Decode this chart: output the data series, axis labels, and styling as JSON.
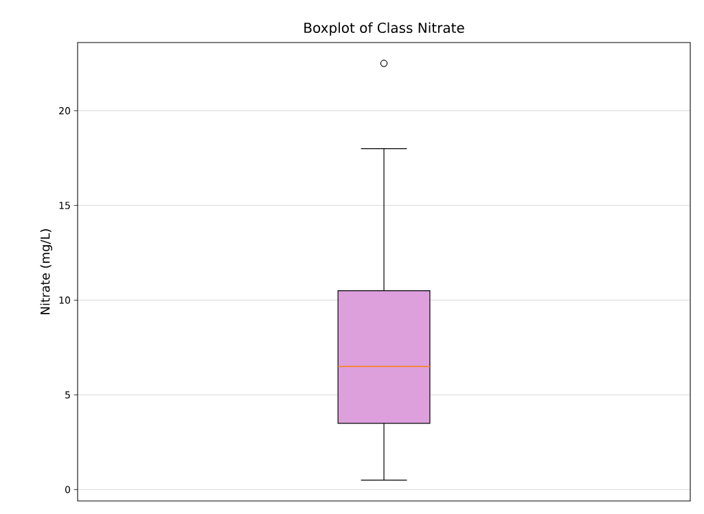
{
  "chart_data": {
    "type": "box",
    "title": "Boxplot of Class Nitrate",
    "ylabel": "Nitrate (mg/L)",
    "categories": [
      null
    ],
    "series": [
      {
        "color": "#dda0dd",
        "boxes": [
          {
            "low": 0.5,
            "q1": 3.5,
            "median": 6.5,
            "q3": 10.5,
            "high": 18,
            "outliers": [
              22.5
            ]
          }
        ]
      }
    ],
    "ylim": [
      -0.6,
      23.6
    ],
    "yticks": [
      0,
      5,
      10,
      15,
      20
    ],
    "grid": "y"
  }
}
